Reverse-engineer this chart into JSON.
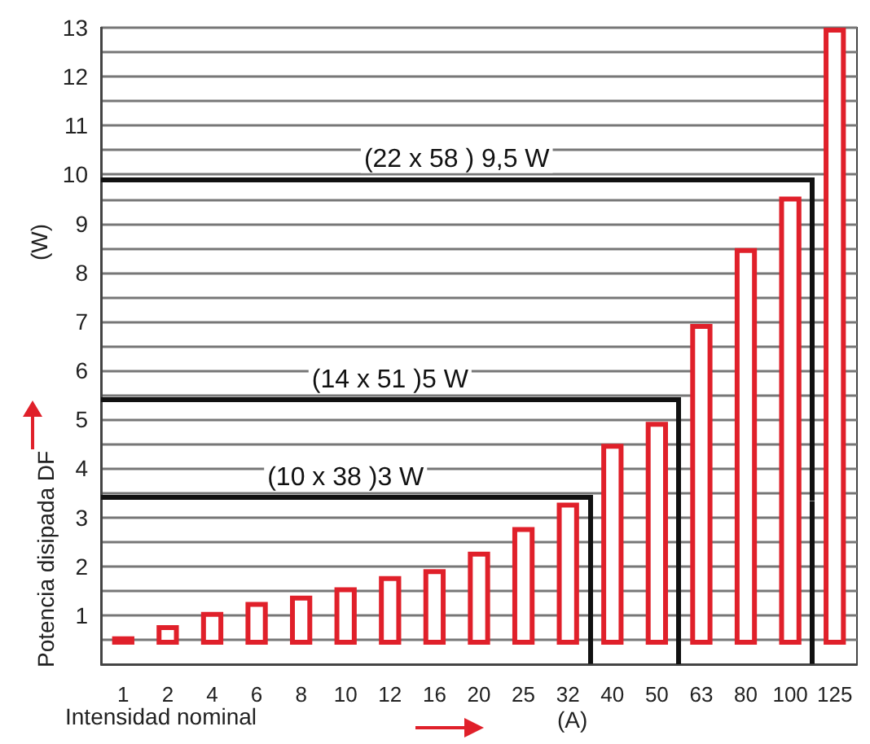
{
  "chart_data": {
    "type": "bar",
    "xlabel": "Intensidad nominal",
    "ylabel": "Potencia disipada DF",
    "categories": [
      "1",
      "2",
      "4",
      "6",
      "8",
      "10",
      "12",
      "16",
      "20",
      "25",
      "32",
      "40",
      "50",
      "63",
      "80",
      "100",
      "125"
    ],
    "values": [
      0.17,
      0.4,
      0.67,
      0.87,
      1.0,
      1.17,
      1.4,
      1.54,
      1.9,
      2.4,
      2.9,
      4.1,
      4.55,
      6.55,
      8.1,
      9.15,
      12.6
    ],
    "base": [
      0.4,
      0.4,
      0.4,
      0.4,
      0.4,
      0.4,
      0.4,
      0.4,
      0.4,
      0.4,
      0.4,
      0.4,
      0.4,
      0.4,
      0.4,
      0.4,
      0.4
    ],
    "color": "#e0202a",
    "ylim": [
      0,
      13
    ],
    "yticks": [
      1,
      2,
      3,
      4,
      5,
      6,
      7,
      8,
      9,
      10,
      11,
      12,
      13
    ],
    "grid": "y",
    "ref_lines": [
      {
        "axis": "y",
        "value": 3.4,
        "label": "(10 x 38 )3 W",
        "color": "#111111"
      },
      {
        "axis": "y",
        "value": 5.4,
        "label": "(14 x 51 )5 W",
        "color": "#111111"
      },
      {
        "axis": "y",
        "value": 9.9,
        "label": "(22 x 58 ) 9,5 W",
        "color": "#111111"
      }
    ],
    "annotations": [
      "(W)",
      "(A)"
    ]
  }
}
